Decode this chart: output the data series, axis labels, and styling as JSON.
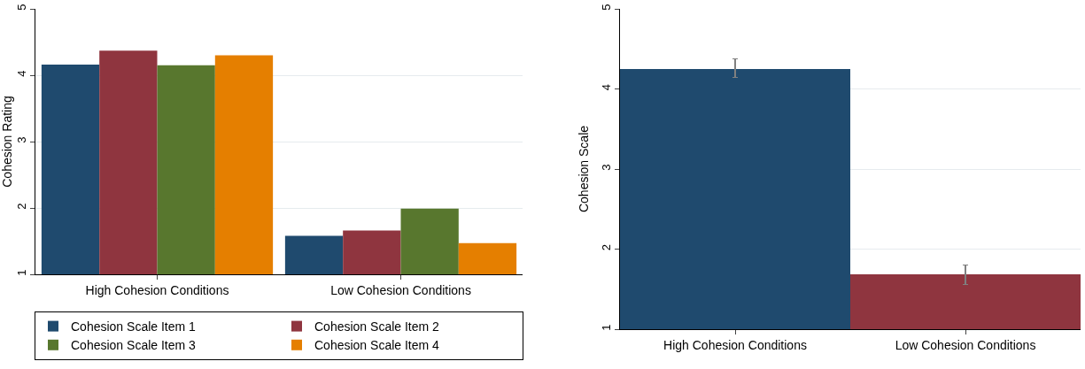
{
  "chart_data": [
    {
      "type": "bar",
      "ylabel": "Cohesion Rating",
      "categories": [
        "High Cohesion Conditions",
        "Low Cohesion Conditions"
      ],
      "series": [
        {
          "name": "Cohesion Scale Item 1",
          "color": "#1f4a6e",
          "values": [
            4.16,
            1.58
          ]
        },
        {
          "name": "Cohesion Scale Item 2",
          "color": "#8f353f",
          "values": [
            4.37,
            1.66
          ]
        },
        {
          "name": "Cohesion Scale Item 3",
          "color": "#58772e",
          "values": [
            4.15,
            1.99
          ]
        },
        {
          "name": "Cohesion Scale Item 4",
          "color": "#e57f00",
          "values": [
            4.3,
            1.47
          ]
        }
      ],
      "ylim": [
        1,
        5
      ],
      "yticks": [
        1,
        2,
        3,
        4,
        5
      ],
      "grid": "y",
      "legend": "bottom"
    },
    {
      "type": "bar",
      "ylabel": "Cohesion Scale",
      "categories": [
        "High Cohesion Conditions",
        "Low Cohesion Conditions"
      ],
      "values": [
        4.25,
        1.68
      ],
      "colors": [
        "#1f4a6e",
        "#8f353f"
      ],
      "errors": [
        [
          4.14,
          4.38
        ],
        [
          1.56,
          1.8
        ]
      ],
      "ylim": [
        1,
        5
      ],
      "yticks": [
        1,
        2,
        3,
        4,
        5
      ],
      "grid": "y",
      "legend": false
    }
  ]
}
